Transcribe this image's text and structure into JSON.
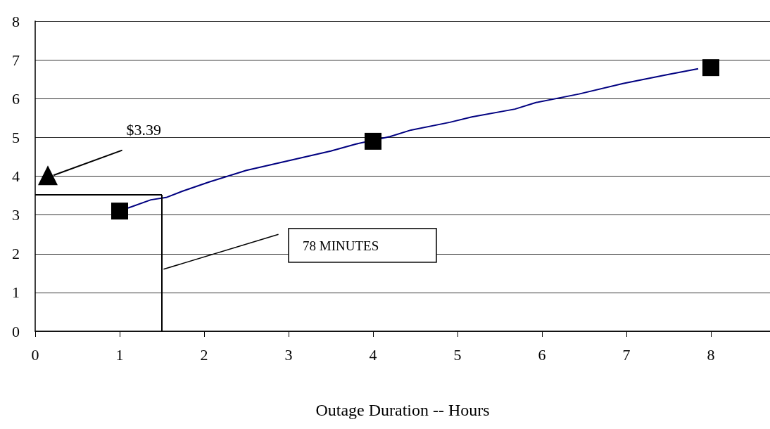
{
  "chart_data": {
    "type": "line",
    "xlabel": "Outage Duration -- Hours",
    "series": [
      {
        "type": "line",
        "color": "#000080",
        "marker": "none",
        "x": [
          1.1,
          1.37,
          1.55,
          1.74,
          2.06,
          2.5,
          3.0,
          3.5,
          3.8,
          4.2,
          4.45,
          4.91,
          5.17,
          5.68,
          5.93,
          6.44,
          6.96,
          7.49,
          7.85
        ],
        "values": [
          3.18,
          3.39,
          3.45,
          3.61,
          3.85,
          4.15,
          4.4,
          4.65,
          4.83,
          5.02,
          5.19,
          5.39,
          5.53,
          5.73,
          5.9,
          6.12,
          6.39,
          6.62,
          6.77
        ]
      },
      {
        "type": "scatter",
        "color": "#000000",
        "marker": "square",
        "x": [
          1,
          4,
          8
        ],
        "values": [
          3.1,
          4.9,
          6.8
        ]
      }
    ],
    "xlim": [
      0,
      8.7
    ],
    "xticks": [
      0,
      1,
      2,
      3,
      4,
      5,
      6,
      7,
      8
    ],
    "ylim": [
      0,
      8
    ],
    "yticks": [
      0,
      1,
      2,
      3,
      4,
      5,
      6,
      7,
      8
    ],
    "grid": "y",
    "ref_lines": [
      {
        "axis": "y",
        "value": 3.52,
        "color": "#000000"
      },
      {
        "axis": "x",
        "value": 1.5,
        "color": "#000000"
      }
    ],
    "annotations": [
      "$3.39",
      "78 MINUTES"
    ]
  }
}
